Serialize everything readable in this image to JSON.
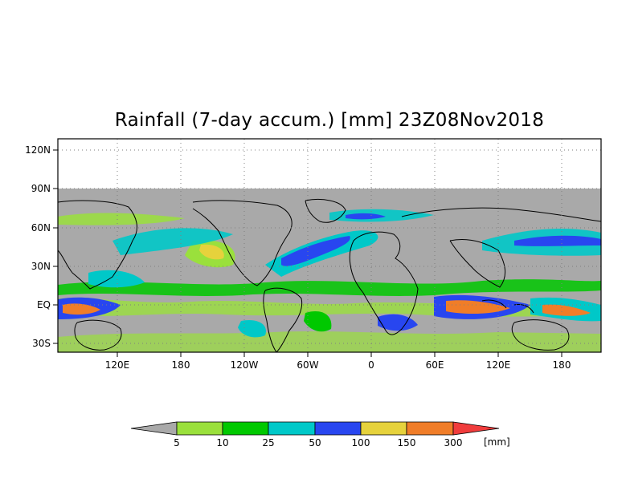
{
  "title": "Rainfall (7-day accum.) [mm] 23Z08Nov2018",
  "map": {
    "lat_labels": [
      "120N",
      "90N",
      "60N",
      "30N",
      "EQ",
      "30S"
    ],
    "lon_labels": [
      "120E",
      "180",
      "120W",
      "60W",
      "0",
      "60E",
      "120E",
      "180"
    ],
    "land_mask_color": "#a9a9a9",
    "coastline_color": "#000000",
    "grid_style": "dotted"
  },
  "colorbar": {
    "labels": [
      "5",
      "10",
      "25",
      "50",
      "100",
      "150",
      "300"
    ],
    "unit": "[mm]",
    "colors": [
      "#a9a9a9",
      "#9ae03c",
      "#00c800",
      "#00c8c8",
      "#2846f0",
      "#e6d23c",
      "#f07d28",
      "#f03c3c"
    ]
  }
}
